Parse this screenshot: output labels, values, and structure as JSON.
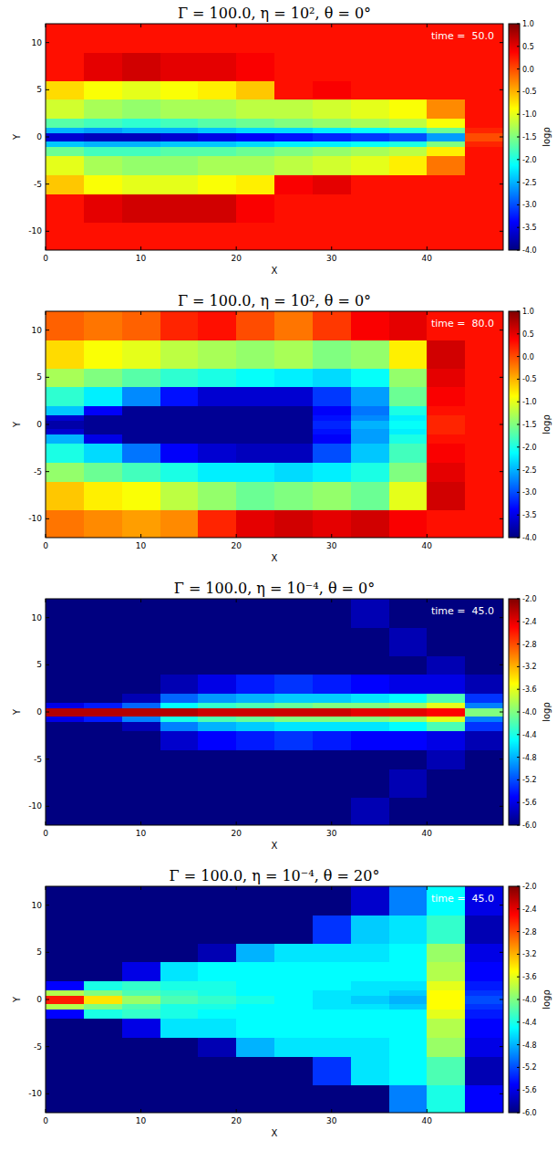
{
  "chart_data": [
    {
      "type": "heatmap",
      "title": "Γ = 100.0, η = 10², θ = 0°",
      "x_label": "X",
      "y_label": "Y",
      "annotation": "time =  50.0",
      "xlim": [
        0,
        48
      ],
      "ylim": [
        -12,
        12
      ],
      "xticks": [
        0,
        10,
        20,
        30,
        40
      ],
      "yticks": [
        -10,
        -5,
        0,
        5,
        10
      ],
      "x_edges": [
        0,
        4,
        8,
        12,
        16,
        20,
        24,
        28,
        32,
        36,
        40,
        44,
        48
      ],
      "y_edges": [
        -12,
        -9,
        -6,
        -4,
        -2,
        -1,
        -0.4,
        0.4,
        1,
        2,
        4,
        6,
        9,
        12
      ],
      "cells": [
        [
          0.3,
          0.3,
          0.3,
          0.3,
          0.3,
          0.3,
          0.3,
          0.3,
          0.3,
          0.3,
          0.3,
          0.3
        ],
        [
          0.3,
          0.5,
          0.6,
          0.6,
          0.6,
          0.4,
          0.3,
          0.3,
          0.3,
          0.3,
          0.3,
          0.3
        ],
        [
          -0.6,
          -0.9,
          -1.0,
          -1.0,
          -0.9,
          -0.8,
          0.4,
          0.5,
          0.3,
          0.3,
          0.3,
          0.3
        ],
        [
          -1.0,
          -1.3,
          -1.4,
          -1.4,
          -1.3,
          -1.3,
          -1.2,
          -1.1,
          -1.0,
          -0.8,
          -0.2,
          0.3
        ],
        [
          -1.6,
          -1.8,
          -1.8,
          -1.7,
          -1.7,
          -1.6,
          -1.5,
          -1.4,
          -1.3,
          -1.2,
          -0.8,
          0.3
        ],
        [
          -2.4,
          -2.5,
          -2.5,
          -2.4,
          -2.4,
          -2.3,
          -2.2,
          -2.2,
          -2.1,
          -2.0,
          -1.5,
          0.2
        ],
        [
          -3.6,
          -3.7,
          -3.7,
          -3.6,
          -3.5,
          -3.4,
          -3.3,
          -3.2,
          -3.1,
          -3.0,
          -2.6,
          0.0
        ],
        [
          -2.5,
          -2.6,
          -2.5,
          -2.5,
          -2.4,
          -2.3,
          -2.3,
          -2.2,
          -2.1,
          -2.0,
          -1.6,
          0.2
        ],
        [
          -1.7,
          -1.8,
          -1.9,
          -1.8,
          -1.7,
          -1.6,
          -1.5,
          -1.4,
          -1.3,
          -1.2,
          -0.9,
          0.3
        ],
        [
          -1.1,
          -1.3,
          -1.4,
          -1.3,
          -1.3,
          -1.2,
          -1.2,
          -1.1,
          -1.0,
          -0.9,
          -0.3,
          0.3
        ],
        [
          -0.7,
          -0.9,
          -1.0,
          -0.9,
          -0.8,
          -0.6,
          0.3,
          0.4,
          0.3,
          0.3,
          0.3,
          0.3
        ],
        [
          0.3,
          0.5,
          0.6,
          0.5,
          0.5,
          0.4,
          0.3,
          0.3,
          0.3,
          0.3,
          0.3,
          0.3
        ],
        [
          0.3,
          0.3,
          0.3,
          0.3,
          0.3,
          0.3,
          0.3,
          0.3,
          0.3,
          0.3,
          0.3,
          0.3
        ]
      ],
      "colorbar_label": "logρ",
      "colorbar_range": [
        -4,
        1
      ],
      "colorbar_ticks": [
        {
          "value": -4,
          "label": "-4.0"
        },
        {
          "value": -3.5,
          "label": "-3.5"
        },
        {
          "value": -3,
          "label": "-3.0"
        },
        {
          "value": -2.5,
          "label": "-2.5"
        },
        {
          "value": -2,
          "label": "-2.0"
        },
        {
          "value": -1.5,
          "label": "-1.5"
        },
        {
          "value": -1,
          "label": "-1.0"
        },
        {
          "value": -0.5,
          "label": "-0.5"
        },
        {
          "value": 0,
          "label": "0.0"
        },
        {
          "value": 0.5,
          "label": "0.5"
        },
        {
          "value": 1,
          "label": "1.0"
        }
      ]
    },
    {
      "type": "heatmap",
      "title": "Γ = 100.0, η = 10², θ = 0°",
      "x_label": "X",
      "y_label": "Y",
      "annotation": "time =  80.0",
      "xlim": [
        0,
        48
      ],
      "ylim": [
        -12,
        12
      ],
      "xticks": [
        0,
        10,
        20,
        30,
        40
      ],
      "yticks": [
        -10,
        -5,
        0,
        5,
        10
      ],
      "x_edges": [
        0,
        4,
        8,
        12,
        16,
        20,
        24,
        28,
        32,
        36,
        40,
        44,
        48
      ],
      "y_edges": [
        -12,
        -9,
        -6,
        -4,
        -2,
        -1,
        -0.4,
        0.4,
        1,
        2,
        4,
        6,
        9,
        12
      ],
      "cells": [
        [
          -0.2,
          -0.3,
          -0.4,
          -0.3,
          0.2,
          0.5,
          0.6,
          0.5,
          0.6,
          0.4,
          0.3,
          0.3
        ],
        [
          -0.6,
          -0.8,
          -0.9,
          -1.2,
          -1.4,
          -1.6,
          -1.5,
          -1.4,
          -1.6,
          -1.0,
          0.6,
          0.3
        ],
        [
          -1.4,
          -1.6,
          -1.8,
          -2.0,
          -2.2,
          -2.2,
          -2.3,
          -2.2,
          -2.0,
          -1.5,
          0.5,
          0.3
        ],
        [
          -2.0,
          -2.3,
          -2.8,
          -3.4,
          -3.6,
          -3.7,
          -3.7,
          -3.0,
          -2.4,
          -1.8,
          0.4,
          0.3
        ],
        [
          -2.5,
          -3.5,
          -3.9,
          -3.9,
          -3.9,
          -3.9,
          -3.9,
          -3.4,
          -2.6,
          -2.0,
          0.3,
          0.3
        ],
        [
          -3.6,
          -3.9,
          -3.9,
          -3.9,
          -3.9,
          -3.9,
          -3.9,
          -3.3,
          -2.6,
          -2.2,
          0.2,
          0.3
        ],
        [
          -3.8,
          -3.9,
          -3.9,
          -3.9,
          -3.9,
          -3.9,
          -3.9,
          -3.2,
          -2.5,
          -2.1,
          0.2,
          0.3
        ],
        [
          -3.6,
          -3.9,
          -3.9,
          -3.9,
          -3.9,
          -3.9,
          -3.9,
          -3.3,
          -2.7,
          -2.2,
          0.2,
          0.3
        ],
        [
          -2.4,
          -3.4,
          -3.9,
          -3.9,
          -3.9,
          -3.9,
          -3.9,
          -3.4,
          -2.8,
          -2.0,
          0.3,
          0.3
        ],
        [
          -1.9,
          -2.2,
          -2.7,
          -3.3,
          -3.6,
          -3.6,
          -3.6,
          -3.1,
          -2.6,
          -1.6,
          0.4,
          0.3
        ],
        [
          -1.3,
          -1.5,
          -1.7,
          -1.9,
          -2.0,
          -2.1,
          -2.2,
          -2.3,
          -2.1,
          -1.4,
          0.5,
          0.3
        ],
        [
          -0.7,
          -0.9,
          -1.0,
          -1.2,
          -1.3,
          -1.4,
          -1.3,
          -1.5,
          -1.4,
          -0.8,
          0.6,
          0.3
        ],
        [
          -0.1,
          -0.2,
          -0.1,
          0.2,
          0.3,
          0.0,
          -0.2,
          0.1,
          0.4,
          0.5,
          0.3,
          0.3
        ]
      ],
      "colorbar_label": "logρ",
      "colorbar_range": [
        -4,
        1
      ],
      "colorbar_ticks": [
        {
          "value": -4,
          "label": "-4.0"
        },
        {
          "value": -3.5,
          "label": "-3.5"
        },
        {
          "value": -3,
          "label": "-3.0"
        },
        {
          "value": -2.5,
          "label": "-2.5"
        },
        {
          "value": -2,
          "label": "-2.0"
        },
        {
          "value": -1.5,
          "label": "-1.5"
        },
        {
          "value": -1,
          "label": "-1.0"
        },
        {
          "value": -0.5,
          "label": "-0.5"
        },
        {
          "value": 0,
          "label": "0.0"
        },
        {
          "value": 0.5,
          "label": "0.5"
        },
        {
          "value": 1,
          "label": "1.0"
        }
      ]
    },
    {
      "type": "heatmap",
      "title": "Γ = 100.0, η = 10⁻⁴, θ = 0°",
      "x_label": "X",
      "y_label": "Y",
      "annotation": "time =  45.0",
      "xlim": [
        0,
        48
      ],
      "ylim": [
        -12,
        12
      ],
      "xticks": [
        0,
        10,
        20,
        30,
        40
      ],
      "yticks": [
        -10,
        -5,
        0,
        5,
        10
      ],
      "x_edges": [
        0,
        4,
        8,
        12,
        16,
        20,
        24,
        28,
        32,
        36,
        40,
        44,
        48
      ],
      "y_edges": [
        -12,
        -9,
        -6,
        -4,
        -2,
        -1,
        -0.4,
        0.4,
        1,
        2,
        4,
        6,
        9,
        12
      ],
      "cells": [
        [
          -6,
          -6,
          -6,
          -6,
          -6,
          -6,
          -6,
          -6,
          -5.8,
          -6,
          -6,
          -6
        ],
        [
          -6,
          -6,
          -6,
          -6,
          -6,
          -6,
          -6,
          -6,
          -6,
          -5.8,
          -6,
          -6
        ],
        [
          -6,
          -6,
          -6,
          -6,
          -6,
          -6,
          -6,
          -6,
          -6,
          -6,
          -5.8,
          -6
        ],
        [
          -6,
          -6,
          -6,
          -5.7,
          -5.5,
          -5.4,
          -5.3,
          -5.4,
          -5.5,
          -5.5,
          -5.6,
          -5.8
        ],
        [
          -6,
          -6,
          -5.8,
          -5.0,
          -4.8,
          -4.7,
          -4.6,
          -4.6,
          -4.6,
          -4.5,
          -4.2,
          -5.3
        ],
        [
          -5.6,
          -5.4,
          -5.0,
          -4.4,
          -4.2,
          -4.1,
          -4.0,
          -4.0,
          -4.0,
          -3.9,
          -3.6,
          -5.0
        ],
        [
          -2.2,
          -2.2,
          -2.2,
          -2.2,
          -2.3,
          -2.3,
          -2.3,
          -2.3,
          -2.4,
          -2.4,
          -2.5,
          -4.0
        ],
        [
          -5.6,
          -5.4,
          -5.1,
          -4.5,
          -4.3,
          -4.2,
          -4.1,
          -4.0,
          -4.0,
          -3.9,
          -3.6,
          -5.0
        ],
        [
          -6,
          -6,
          -5.8,
          -5.1,
          -4.9,
          -4.8,
          -4.7,
          -4.7,
          -4.6,
          -4.5,
          -4.2,
          -5.3
        ],
        [
          -6,
          -6,
          -6,
          -5.8,
          -5.6,
          -5.4,
          -5.3,
          -5.4,
          -5.5,
          -5.6,
          -5.6,
          -5.8
        ],
        [
          -6,
          -6,
          -6,
          -6,
          -6,
          -6,
          -6,
          -6,
          -6,
          -6,
          -5.8,
          -6
        ],
        [
          -6,
          -6,
          -6,
          -6,
          -6,
          -6,
          -6,
          -6,
          -6,
          -5.8,
          -6,
          -6
        ],
        [
          -6,
          -6,
          -6,
          -6,
          -6,
          -6,
          -6,
          -6,
          -5.8,
          -6,
          -6,
          -6
        ]
      ],
      "colorbar_label": "logρ",
      "colorbar_range": [
        -6,
        -2
      ],
      "colorbar_ticks": [
        {
          "value": -6,
          "label": "-6.0"
        },
        {
          "value": -5.6,
          "label": "-5.6"
        },
        {
          "value": -5.2,
          "label": "-5.2"
        },
        {
          "value": -4.8,
          "label": "-4.8"
        },
        {
          "value": -4.4,
          "label": "-4.4"
        },
        {
          "value": -4,
          "label": "-4.0"
        },
        {
          "value": -3.6,
          "label": "-3.6"
        },
        {
          "value": -3.2,
          "label": "-3.2"
        },
        {
          "value": -2.8,
          "label": "-2.8"
        },
        {
          "value": -2.4,
          "label": "-2.4"
        },
        {
          "value": -2,
          "label": "-2.0"
        }
      ]
    },
    {
      "type": "heatmap",
      "title": "Γ = 100.0, η = 10⁻⁴, θ = 20°",
      "x_label": "X",
      "y_label": "Y",
      "annotation": "time =  45.0",
      "xlim": [
        0,
        48
      ],
      "ylim": [
        -12,
        12
      ],
      "xticks": [
        0,
        10,
        20,
        30,
        40
      ],
      "yticks": [
        -10,
        -5,
        0,
        5,
        10
      ],
      "x_edges": [
        0,
        4,
        8,
        12,
        16,
        20,
        24,
        28,
        32,
        36,
        40,
        44,
        48
      ],
      "y_edges": [
        -12,
        -9,
        -6,
        -4,
        -2,
        -1,
        -0.4,
        0.4,
        1,
        2,
        4,
        6,
        9,
        12
      ],
      "cells": [
        [
          -6,
          -6,
          -6,
          -6,
          -6,
          -6,
          -6,
          -6,
          -6,
          -5.0,
          -4.4,
          -5.5
        ],
        [
          -6,
          -6,
          -6,
          -6,
          -6,
          -6,
          -6,
          -5.3,
          -4.6,
          -4.5,
          -4.2,
          -5.8
        ],
        [
          -6,
          -6,
          -6,
          -6,
          -5.8,
          -4.8,
          -4.6,
          -4.6,
          -4.6,
          -4.5,
          -3.9,
          -5.6
        ],
        [
          -6,
          -6,
          -5.6,
          -4.6,
          -4.6,
          -4.5,
          -4.5,
          -4.5,
          -4.5,
          -4.5,
          -3.8,
          -5.5
        ],
        [
          -5.5,
          -4.4,
          -4.3,
          -4.4,
          -4.5,
          -4.5,
          -4.5,
          -4.5,
          -4.5,
          -4.5,
          -3.6,
          -5.4
        ],
        [
          -3.8,
          -4.0,
          -4.2,
          -4.4,
          -4.4,
          -4.5,
          -4.5,
          -4.6,
          -4.6,
          -4.7,
          -3.5,
          -5.3
        ],
        [
          -2.6,
          -3.4,
          -3.9,
          -4.2,
          -4.3,
          -4.4,
          -4.5,
          -4.6,
          -4.7,
          -4.8,
          -3.5,
          -5.2
        ],
        [
          -3.8,
          -4.0,
          -4.2,
          -4.3,
          -4.4,
          -4.5,
          -4.5,
          -4.6,
          -4.6,
          -4.7,
          -3.5,
          -5.3
        ],
        [
          -5.5,
          -4.4,
          -4.3,
          -4.4,
          -4.4,
          -4.5,
          -4.5,
          -4.5,
          -4.6,
          -4.6,
          -3.6,
          -5.4
        ],
        [
          -6,
          -6,
          -5.6,
          -4.6,
          -4.5,
          -4.5,
          -4.5,
          -4.5,
          -4.5,
          -4.5,
          -3.8,
          -5.5
        ],
        [
          -6,
          -6,
          -6,
          -6,
          -5.8,
          -4.8,
          -4.6,
          -4.6,
          -4.6,
          -4.5,
          -3.9,
          -5.6
        ],
        [
          -6,
          -6,
          -6,
          -6,
          -6,
          -6,
          -6,
          -5.3,
          -4.7,
          -4.6,
          -4.3,
          -5.8
        ],
        [
          -6,
          -6,
          -6,
          -6,
          -6,
          -6,
          -6,
          -6,
          -5.7,
          -5.0,
          -4.5,
          -5.6
        ]
      ],
      "colorbar_label": "logρ",
      "colorbar_range": [
        -6,
        -2
      ],
      "colorbar_ticks": [
        {
          "value": -6,
          "label": "-6.0"
        },
        {
          "value": -5.6,
          "label": "-5.6"
        },
        {
          "value": -5.2,
          "label": "-5.2"
        },
        {
          "value": -4.8,
          "label": "-4.8"
        },
        {
          "value": -4.4,
          "label": "-4.4"
        },
        {
          "value": -4,
          "label": "-4.0"
        },
        {
          "value": -3.6,
          "label": "-3.6"
        },
        {
          "value": -3.2,
          "label": "-3.2"
        },
        {
          "value": -2.8,
          "label": "-2.8"
        },
        {
          "value": -2.4,
          "label": "-2.4"
        },
        {
          "value": -2,
          "label": "-2.0"
        }
      ]
    }
  ]
}
